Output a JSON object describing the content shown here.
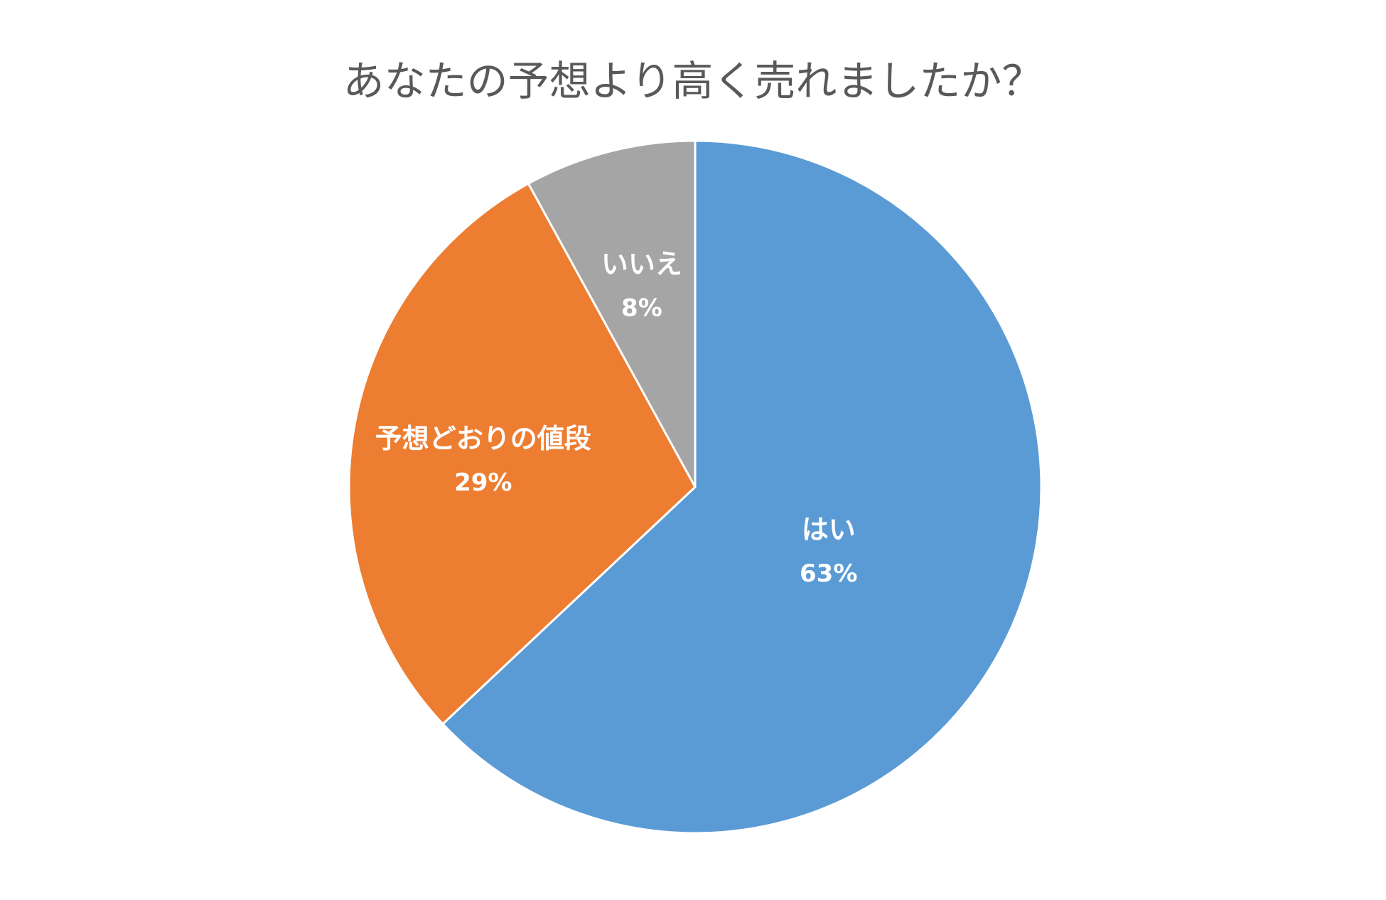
{
  "chart_data": {
    "type": "pie",
    "title": "あなたの予想より高く売れましたか？",
    "start_angle_deg": 0,
    "direction": "clockwise",
    "slices": [
      {
        "label": "はい",
        "value": 63,
        "value_label": "63%",
        "color": "#5B9BD5"
      },
      {
        "label": "予想どおりの値段",
        "value": 29,
        "value_label": "29%",
        "color": "#ED7D31"
      },
      {
        "label": "いいえ",
        "value": 8,
        "value_label": "8%",
        "color": "#A5A5A5"
      }
    ],
    "legend": "none",
    "data_labels": "inside"
  }
}
